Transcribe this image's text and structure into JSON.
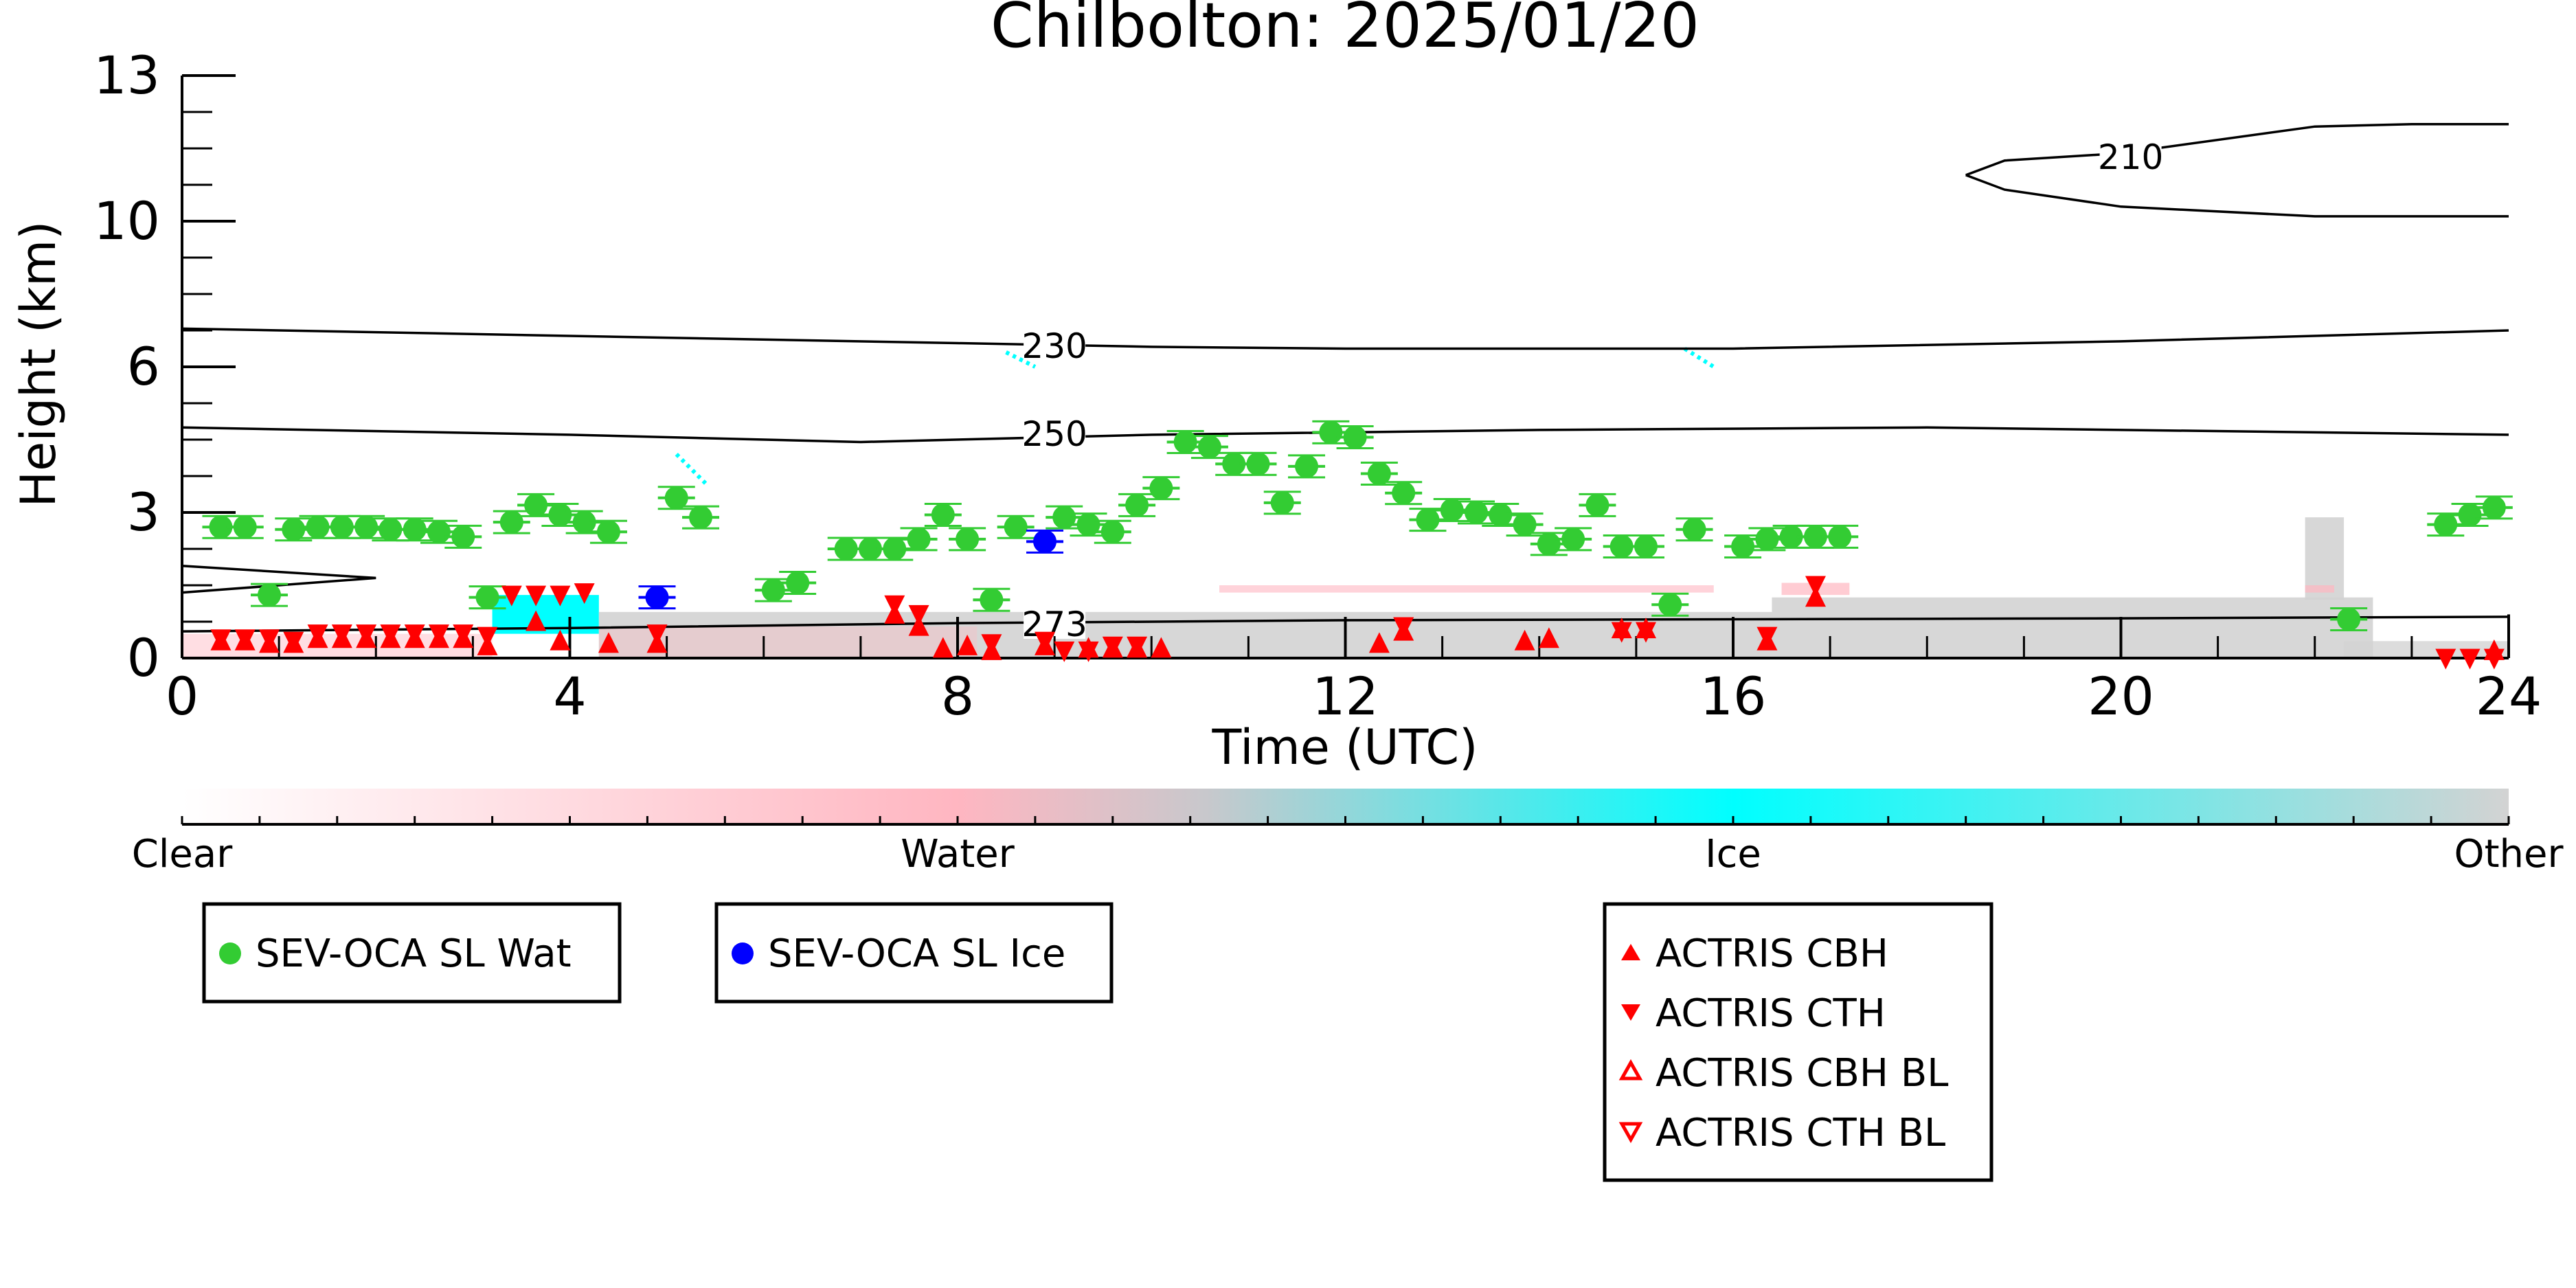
{
  "chart_data": {
    "type": "scatter",
    "title": "Chilbolton: 2025/01/20",
    "xlabel": "Time (UTC)",
    "ylabel": "Height (km)",
    "xlim": [
      0,
      24
    ],
    "x_ticks": [
      "0",
      "4",
      "8",
      "12",
      "16",
      "20",
      "24"
    ],
    "y_ticks": [
      "0",
      "3",
      "6",
      "10",
      "13"
    ],
    "y_scale": "nonlinear (0-3-6-10-13 km equally spaced)",
    "background_classification": {
      "description": "cloud phase mask",
      "colorbar_labels": [
        "Clear",
        "Water",
        "Ice",
        "Other"
      ],
      "colors": {
        "clear": "#ffffff",
        "water": "#ffb6c1",
        "ice": "#00ffff",
        "other": "#d3d3d3"
      }
    },
    "temperature_contours": [
      {
        "label": "210",
        "points": [
          [
            18.4,
            10.95
          ],
          [
            18.8,
            11.25
          ],
          [
            20.0,
            11.4
          ],
          [
            22.0,
            11.95
          ],
          [
            23.0,
            12.0
          ],
          [
            24.0,
            12.0
          ]
        ]
      },
      {
        "label": "210",
        "points": [
          [
            18.4,
            10.95
          ],
          [
            18.8,
            10.65
          ],
          [
            20.0,
            10.3
          ],
          [
            22.0,
            10.1
          ],
          [
            24.0,
            10.1
          ]
        ]
      },
      {
        "label": "230",
        "points": [
          [
            0,
            7.05
          ],
          [
            2,
            6.95
          ],
          [
            4,
            6.85
          ],
          [
            8,
            6.65
          ],
          [
            10,
            6.55
          ],
          [
            12,
            6.5
          ],
          [
            16,
            6.5
          ],
          [
            20,
            6.7
          ],
          [
            24,
            7.0
          ]
        ]
      },
      {
        "label": "250",
        "points": [
          [
            0,
            4.75
          ],
          [
            4,
            4.6
          ],
          [
            7,
            4.45
          ],
          [
            10,
            4.6
          ],
          [
            14,
            4.7
          ],
          [
            18,
            4.75
          ],
          [
            24,
            4.6
          ]
        ]
      },
      {
        "label": "273",
        "points": [
          [
            0,
            0.55
          ],
          [
            4,
            0.62
          ],
          [
            8,
            0.72
          ],
          [
            12,
            0.78
          ],
          [
            16,
            0.8
          ],
          [
            20,
            0.82
          ],
          [
            24,
            0.85
          ]
        ]
      }
    ],
    "series": [
      {
        "name": "SEV-OCA SL Wat",
        "marker": "filled-circle",
        "color": "#33cc33",
        "x": [
          0.4,
          0.65,
          0.9,
          1.15,
          1.4,
          1.65,
          1.9,
          2.15,
          2.4,
          2.65,
          2.9,
          3.15,
          3.4,
          3.65,
          3.9,
          4.15,
          4.4,
          5.1,
          5.35,
          6.1,
          6.35,
          6.85,
          7.1,
          7.35,
          7.6,
          7.85,
          8.1,
          8.35,
          8.6,
          9.1,
          9.35,
          9.6,
          9.85,
          10.1,
          10.35,
          10.6,
          10.85,
          11.1,
          11.35,
          11.6,
          11.85,
          12.1,
          12.35,
          12.6,
          12.85,
          13.1,
          13.35,
          13.6,
          13.85,
          14.1,
          14.35,
          14.6,
          14.85,
          15.1,
          15.35,
          15.6,
          16.1,
          16.35,
          16.6,
          16.85,
          17.1,
          22.35,
          23.35,
          23.6,
          23.85
        ],
        "y": [
          2.7,
          2.7,
          1.3,
          2.65,
          2.7,
          2.7,
          2.7,
          2.65,
          2.65,
          2.6,
          2.5,
          1.25,
          2.8,
          3.15,
          2.95,
          2.8,
          2.6,
          3.3,
          2.9,
          1.4,
          1.55,
          2.25,
          2.25,
          2.25,
          2.45,
          2.95,
          2.45,
          1.2,
          2.7,
          2.9,
          2.75,
          2.6,
          3.15,
          3.5,
          4.45,
          4.35,
          4.0,
          4.0,
          3.2,
          3.95,
          4.65,
          4.55,
          3.8,
          3.4,
          2.85,
          3.05,
          3.0,
          2.95,
          2.75,
          2.35,
          2.45,
          3.15,
          2.3,
          2.3,
          1.1,
          2.65,
          2.3,
          2.45,
          2.5,
          2.5,
          2.5,
          0.8,
          2.75,
          2.95,
          3.1
        ]
      },
      {
        "name": "SEV-OCA SL Ice",
        "marker": "filled-circle",
        "color": "#0000ff",
        "x": [
          4.9,
          8.9
        ],
        "y": [
          1.25,
          2.4
        ]
      },
      {
        "name": "ACTRIS CBH",
        "marker": "filled-triangle-up",
        "color": "#ff0000",
        "x": [
          0.4,
          0.65,
          0.9,
          1.15,
          1.4,
          1.65,
          1.9,
          2.15,
          2.4,
          2.65,
          2.9,
          3.15,
          3.65,
          3.9,
          4.4,
          4.9,
          7.35,
          7.6,
          7.85,
          8.1,
          8.35,
          8.9,
          9.35,
          9.6,
          9.85,
          10.1,
          12.35,
          12.6,
          13.85,
          14.1,
          14.85,
          15.1,
          16.35,
          16.85,
          23.85
        ],
        "y": [
          0.3,
          0.3,
          0.25,
          0.25,
          0.35,
          0.35,
          0.35,
          0.35,
          0.35,
          0.35,
          0.35,
          0.2,
          0.7,
          0.3,
          0.25,
          0.25,
          0.85,
          0.6,
          0.15,
          0.2,
          0.1,
          0.2,
          0.15,
          0.15,
          0.15,
          0.15,
          0.25,
          0.5,
          0.3,
          0.35,
          0.55,
          0.55,
          0.3,
          1.2,
          0.1
        ]
      },
      {
        "name": "ACTRIS CTH",
        "marker": "filled-triangle-down",
        "color": "#ff0000",
        "x": [
          0.4,
          0.65,
          0.9,
          1.15,
          1.4,
          1.65,
          1.9,
          2.15,
          2.4,
          2.65,
          2.9,
          3.15,
          3.4,
          3.65,
          3.9,
          4.15,
          4.9,
          7.35,
          7.6,
          8.35,
          8.9,
          9.1,
          9.35,
          9.6,
          9.85,
          12.6,
          14.85,
          15.1,
          16.35,
          16.85,
          23.35,
          23.6,
          23.85
        ],
        "y": [
          0.45,
          0.45,
          0.45,
          0.4,
          0.55,
          0.55,
          0.55,
          0.55,
          0.55,
          0.55,
          0.55,
          0.5,
          1.35,
          1.35,
          1.35,
          1.4,
          0.55,
          1.15,
          0.95,
          0.35,
          0.4,
          0.2,
          0.2,
          0.3,
          0.3,
          0.7,
          0.6,
          0.6,
          0.5,
          1.55,
          0.05,
          0.05,
          0.05
        ]
      },
      {
        "name": "ACTRIS CBH BL",
        "marker": "open-triangle-up",
        "color": "#ff0000",
        "x": [],
        "y": []
      },
      {
        "name": "ACTRIS CTH BL",
        "marker": "open-triangle-down",
        "color": "#ff0000",
        "x": [],
        "y": []
      }
    ]
  }
}
